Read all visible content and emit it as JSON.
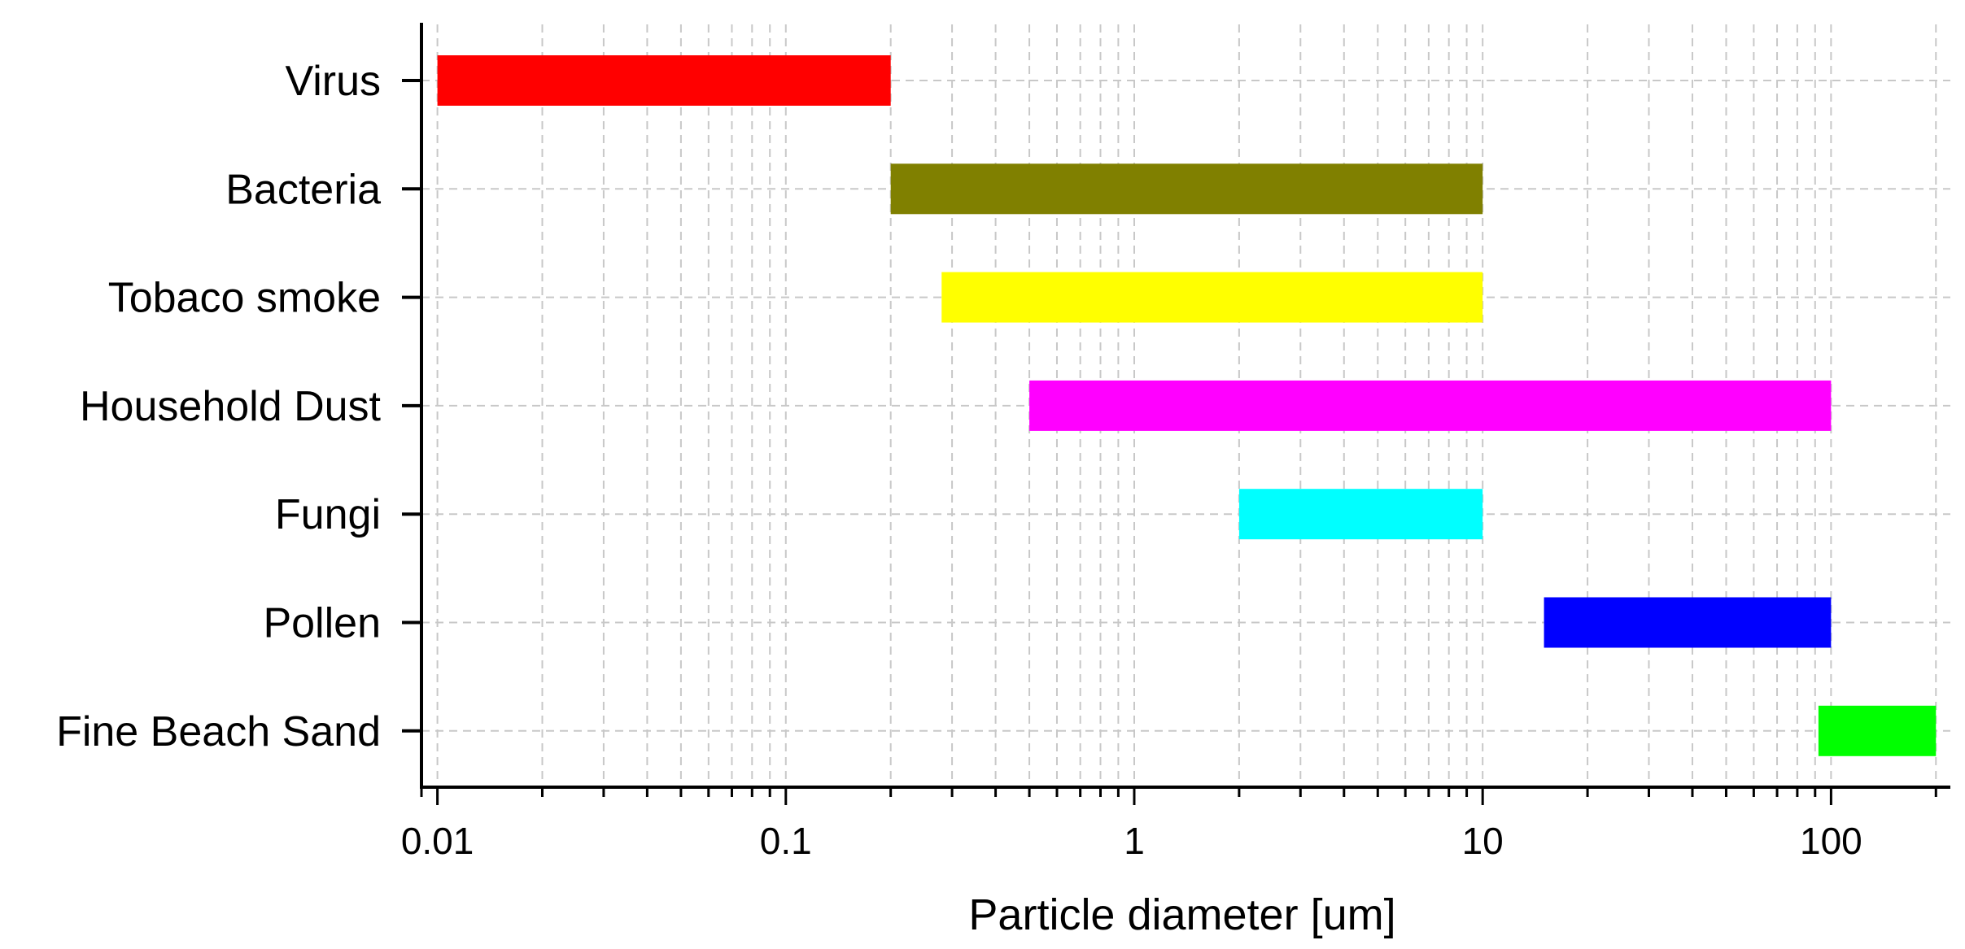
{
  "chart_data": {
    "type": "bar",
    "orientation": "horizontal",
    "bar_style": "floating-range",
    "categories": [
      "Virus",
      "Bacteria",
      "Tobaco smoke",
      "Household Dust",
      "Fungi",
      "Pollen",
      "Fine Beach Sand"
    ],
    "ranges": [
      {
        "category": "Virus",
        "start": 0.01,
        "end": 0.2,
        "color": "#ff0000"
      },
      {
        "category": "Bacteria",
        "start": 0.2,
        "end": 10,
        "color": "#808000"
      },
      {
        "category": "Tobaco smoke",
        "start": 0.28,
        "end": 10,
        "color": "#ffff00"
      },
      {
        "category": "Household Dust",
        "start": 0.5,
        "end": 100,
        "color": "#ff00ff"
      },
      {
        "category": "Fungi",
        "start": 2,
        "end": 10,
        "color": "#00ffff"
      },
      {
        "category": "Pollen",
        "start": 15,
        "end": 100,
        "color": "#0000ff"
      },
      {
        "category": "Fine Beach Sand",
        "start": 92,
        "end": 200,
        "color": "#00ff00"
      }
    ],
    "xlabel": "Particle diameter [um]",
    "ylabel": "",
    "xscale": "log",
    "xlim": [
      0.009,
      220
    ],
    "x_ticks": [
      {
        "value": 0.01,
        "label": "0.01"
      },
      {
        "value": 0.1,
        "label": "0.1"
      },
      {
        "value": 1,
        "label": "1"
      },
      {
        "value": 10,
        "label": "10"
      },
      {
        "value": 100,
        "label": "100"
      }
    ],
    "grid": true,
    "grid_style": "dashed"
  }
}
